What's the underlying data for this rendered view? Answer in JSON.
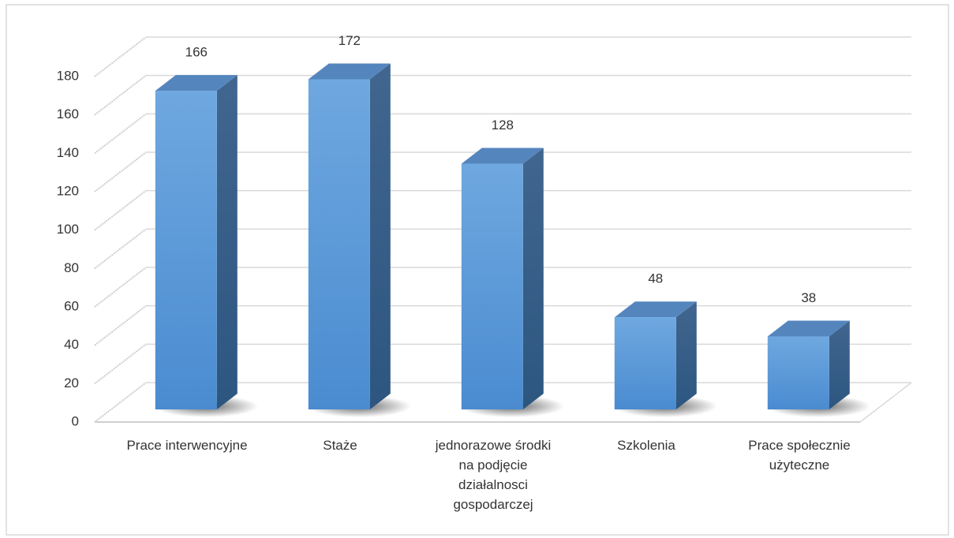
{
  "chart_data": {
    "type": "bar3d",
    "categories": [
      "Prace interwencyjne",
      "Staże",
      "jednorazowe środki na podjęcie działalnosci gospodarczej",
      "Szkolenia",
      "Prace społecznie użyteczne"
    ],
    "values": [
      166,
      172,
      128,
      48,
      38
    ],
    "color": "#5b9bd5",
    "ylim": [
      0,
      180
    ],
    "yticks": [
      0,
      20,
      40,
      60,
      80,
      100,
      120,
      140,
      160,
      180
    ],
    "grid": true
  }
}
